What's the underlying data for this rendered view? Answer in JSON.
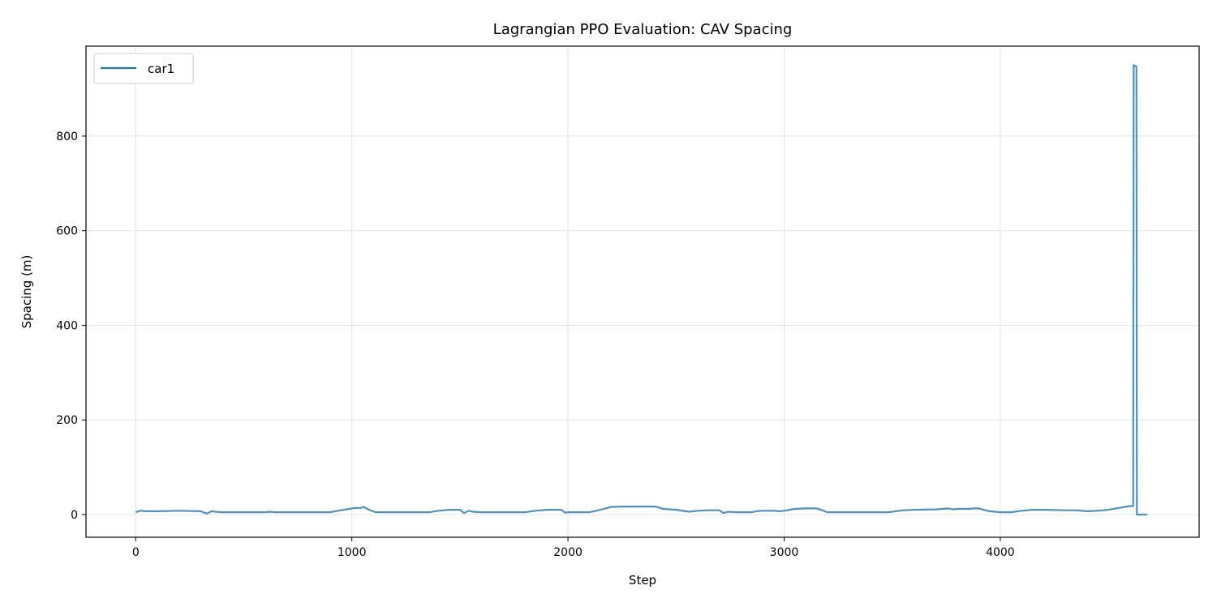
{
  "chart_data": {
    "type": "line",
    "title": "Lagrangian PPO Evaluation: CAV Spacing",
    "xlabel": "Step",
    "ylabel": "Spacing (m)",
    "xlim": [
      -230,
      4920
    ],
    "ylim": [
      -48,
      990
    ],
    "grid": true,
    "legend_position": "top-left",
    "x_ticks": [
      0,
      1000,
      2000,
      3000,
      4000
    ],
    "y_ticks": [
      0,
      200,
      400,
      600,
      800
    ],
    "x_tick_labels": [
      "0",
      "1000",
      "2000",
      "3000",
      "4000"
    ],
    "y_tick_labels": [
      "0",
      "200",
      "400",
      "600",
      "800"
    ],
    "series": [
      {
        "name": "car1",
        "color": "#1f77b4",
        "x": [
          0,
          20,
          50,
          100,
          200,
          300,
          330,
          350,
          370,
          400,
          500,
          600,
          620,
          650,
          700,
          800,
          900,
          950,
          1000,
          1020,
          1040,
          1055,
          1080,
          1110,
          1200,
          1300,
          1360,
          1400,
          1450,
          1500,
          1520,
          1540,
          1560,
          1600,
          1700,
          1800,
          1850,
          1900,
          1950,
          1970,
          1985,
          2000,
          2050,
          2100,
          2150,
          2200,
          2250,
          2300,
          2350,
          2400,
          2420,
          2440,
          2500,
          2560,
          2600,
          2650,
          2700,
          2720,
          2740,
          2780,
          2850,
          2870,
          2900,
          2950,
          2980,
          3000,
          3050,
          3100,
          3150,
          3170,
          3200,
          3300,
          3400,
          3480,
          3500,
          3550,
          3600,
          3700,
          3760,
          3780,
          3800,
          3850,
          3880,
          3900,
          3950,
          4000,
          4050,
          4100,
          4150,
          4200,
          4300,
          4350,
          4400,
          4450,
          4500,
          4550,
          4600,
          4615,
          4617,
          4630,
          4632,
          4660,
          4680
        ],
        "values": [
          5,
          8,
          7,
          7,
          8,
          7,
          2,
          7,
          6,
          5,
          5,
          5,
          6,
          5,
          5,
          5,
          5,
          9,
          13,
          14,
          14,
          16,
          10,
          5,
          5,
          5,
          5,
          8,
          10,
          10,
          3,
          8,
          6,
          5,
          5,
          5,
          8,
          10,
          10,
          10,
          4,
          5,
          5,
          5,
          10,
          16,
          17,
          17,
          17,
          17,
          15,
          12,
          10,
          6,
          8,
          9,
          9,
          3,
          6,
          5,
          5,
          7,
          8,
          8,
          7,
          8,
          12,
          13,
          13,
          10,
          5,
          5,
          5,
          5,
          6,
          9,
          10,
          11,
          13,
          11,
          12,
          12,
          13,
          13,
          7,
          5,
          5,
          8,
          10,
          10,
          9,
          9,
          7,
          8,
          10,
          14,
          18,
          18,
          950,
          947,
          0,
          0,
          0
        ]
      }
    ]
  }
}
